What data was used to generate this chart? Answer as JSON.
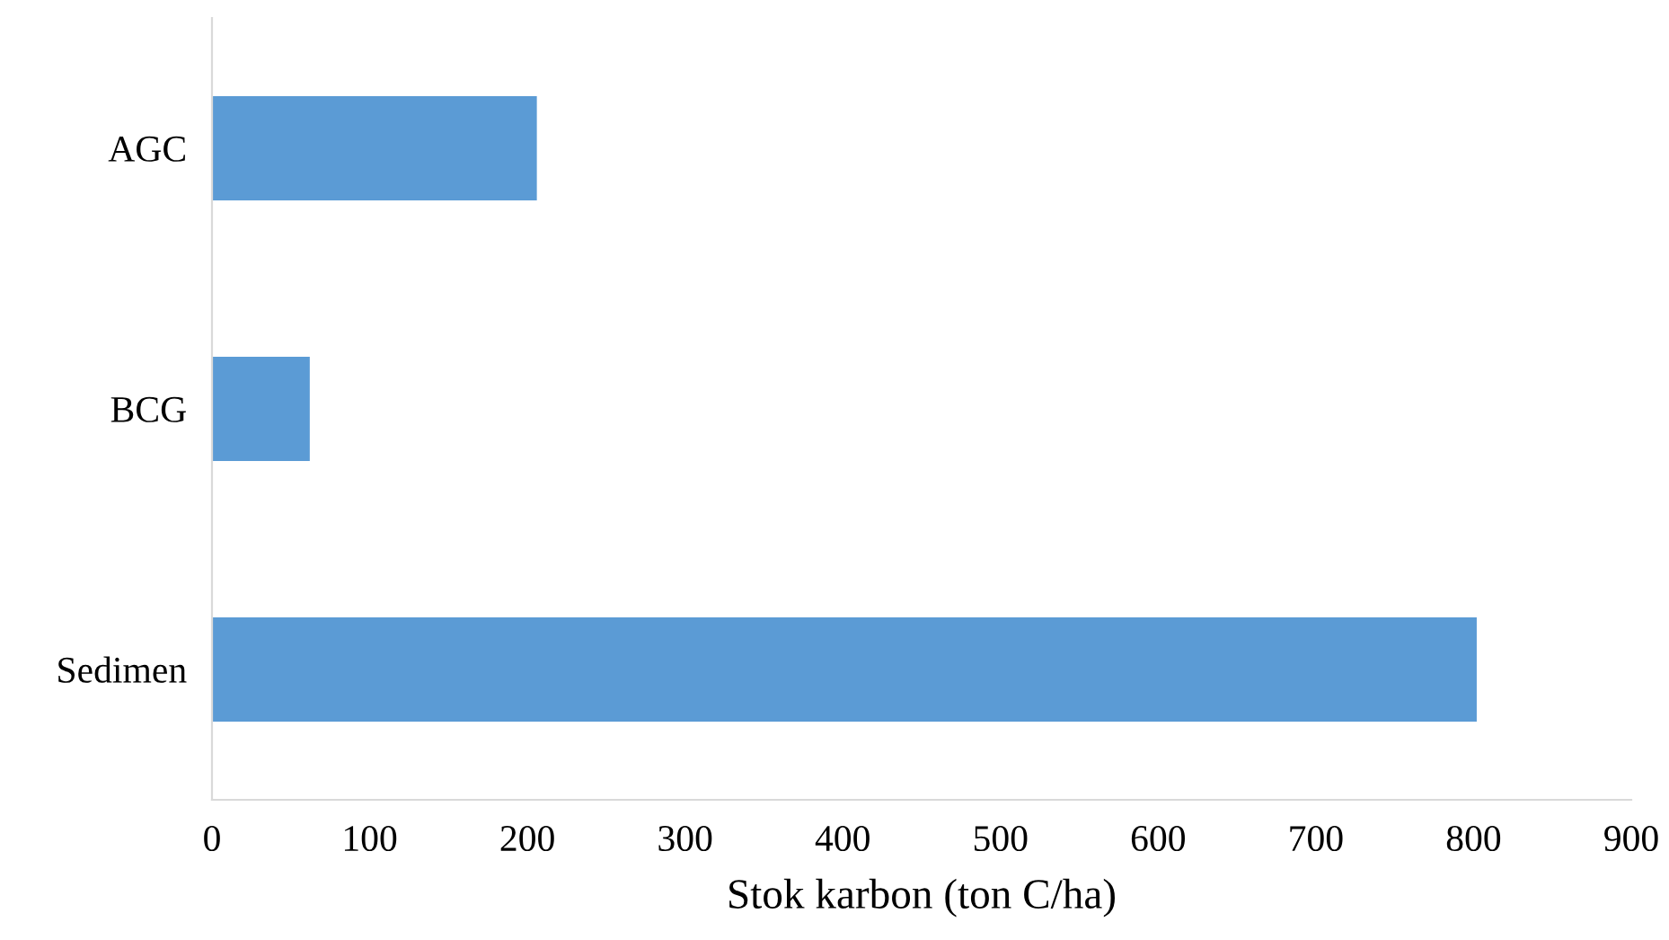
{
  "chart_data": {
    "type": "bar",
    "orientation": "horizontal",
    "xlabel": "Stok karbon (ton C/ha)",
    "categories": [
      "AGC",
      "BCG",
      "Sedimen"
    ],
    "values": [
      206,
      62,
      802
    ],
    "color": "#5b9bd5",
    "xlim": [
      0,
      900
    ],
    "xticks": [
      0,
      100,
      200,
      300,
      400,
      500,
      600,
      700,
      800,
      900
    ],
    "grid": false,
    "legend": false
  }
}
